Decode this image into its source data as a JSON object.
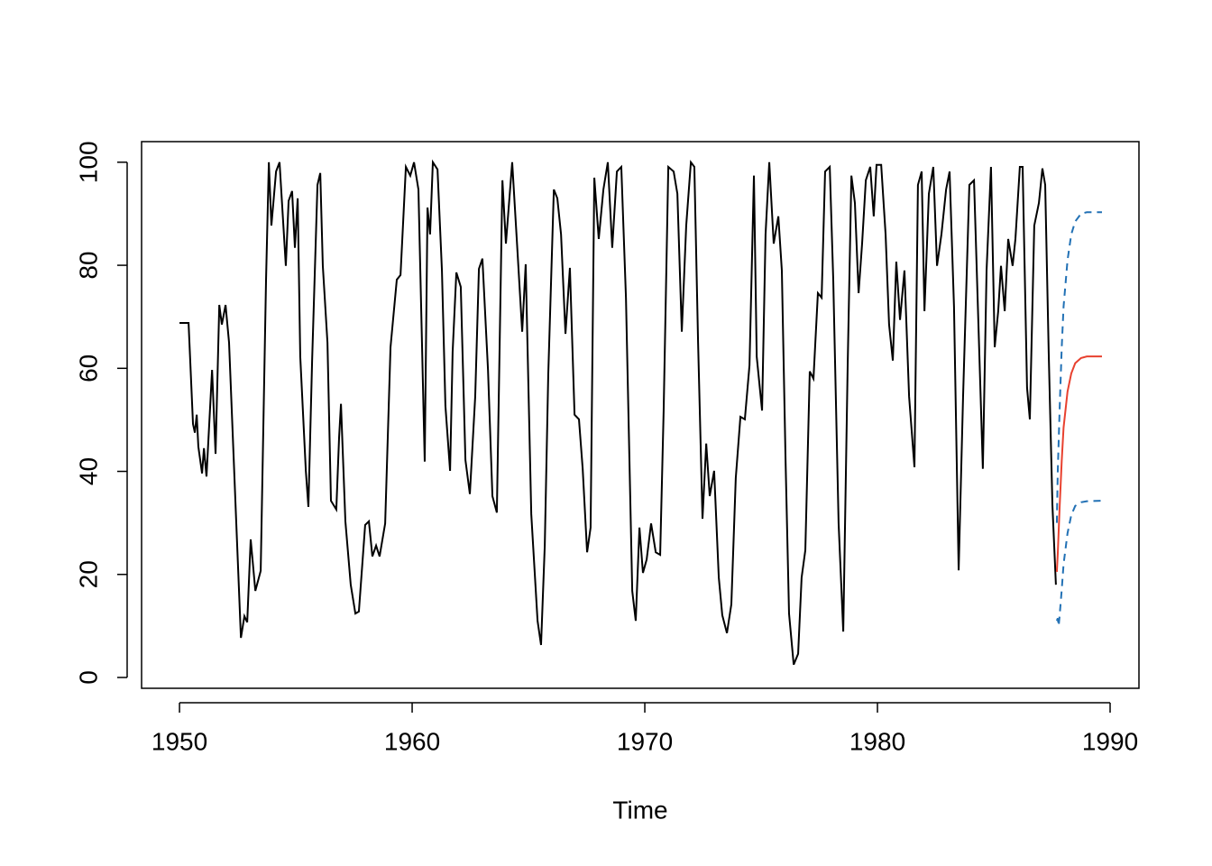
{
  "chart_data": {
    "type": "line",
    "xlabel": "Time",
    "xlim": [
      1948.37,
      1991.24
    ],
    "ylim": [
      -2.1,
      104.0
    ],
    "xticks": [
      1950,
      1960,
      1970,
      1980,
      1990
    ],
    "yticks": [
      0,
      20,
      40,
      60,
      80,
      100
    ],
    "series": [
      {
        "color": "#000000",
        "linestyle": "solid",
        "x": [
          1950.0,
          1950.39,
          1950.58,
          1950.66,
          1950.74,
          1950.81,
          1950.97,
          1951.05,
          1951.16,
          1951.4,
          1951.55,
          1951.71,
          1951.82,
          1951.98,
          1952.13,
          1952.44,
          1952.64,
          1952.79,
          1952.91,
          1953.06,
          1953.26,
          1953.49,
          1953.72,
          1953.84,
          1953.95,
          1954.15,
          1954.3,
          1954.57,
          1954.69,
          1954.84,
          1954.96,
          1955.08,
          1955.19,
          1955.43,
          1955.54,
          1955.7,
          1955.93,
          1956.05,
          1956.16,
          1956.36,
          1956.51,
          1956.74,
          1956.86,
          1956.94,
          1957.13,
          1957.36,
          1957.56,
          1957.71,
          1957.98,
          1958.14,
          1958.29,
          1958.45,
          1958.6,
          1958.84,
          1959.07,
          1959.34,
          1959.5,
          1959.73,
          1959.92,
          1960.08,
          1960.27,
          1960.54,
          1960.66,
          1960.77,
          1960.89,
          1961.09,
          1961.28,
          1961.43,
          1961.63,
          1961.74,
          1961.9,
          1962.09,
          1962.29,
          1962.48,
          1962.71,
          1962.87,
          1963.02,
          1963.26,
          1963.45,
          1963.64,
          1963.88,
          1964.03,
          1964.3,
          1964.53,
          1964.73,
          1964.88,
          1965.12,
          1965.39,
          1965.54,
          1965.7,
          1965.85,
          1966.09,
          1966.24,
          1966.4,
          1966.59,
          1966.78,
          1966.98,
          1967.17,
          1967.33,
          1967.52,
          1967.67,
          1967.83,
          1968.02,
          1968.22,
          1968.41,
          1968.6,
          1968.8,
          1968.99,
          1969.19,
          1969.46,
          1969.61,
          1969.77,
          1969.92,
          1970.08,
          1970.27,
          1970.47,
          1970.66,
          1970.81,
          1971.01,
          1971.24,
          1971.4,
          1971.59,
          1971.78,
          1971.98,
          1972.13,
          1972.29,
          1972.48,
          1972.64,
          1972.79,
          1972.98,
          1973.18,
          1973.33,
          1973.53,
          1973.72,
          1973.91,
          1974.11,
          1974.3,
          1974.5,
          1974.69,
          1974.81,
          1975.04,
          1975.19,
          1975.35,
          1975.54,
          1975.74,
          1975.89,
          1976.05,
          1976.2,
          1976.4,
          1976.59,
          1976.74,
          1976.9,
          1977.09,
          1977.25,
          1977.44,
          1977.6,
          1977.75,
          1977.95,
          1978.1,
          1978.33,
          1978.53,
          1978.72,
          1978.88,
          1979.03,
          1979.19,
          1979.34,
          1979.5,
          1979.69,
          1979.84,
          1979.96,
          1980.16,
          1980.35,
          1980.5,
          1980.66,
          1980.81,
          1980.97,
          1981.16,
          1981.36,
          1981.59,
          1981.74,
          1981.9,
          1982.02,
          1982.21,
          1982.4,
          1982.56,
          1982.75,
          1982.95,
          1983.1,
          1983.29,
          1983.49,
          1983.68,
          1983.95,
          1984.15,
          1984.34,
          1984.53,
          1984.69,
          1984.88,
          1985.04,
          1985.19,
          1985.31,
          1985.47,
          1985.62,
          1985.81,
          1985.93,
          1986.12,
          1986.24,
          1986.43,
          1986.55,
          1986.74,
          1986.94,
          1987.09,
          1987.21,
          1987.36,
          1987.52,
          1987.67
        ],
        "values": [
          68.8,
          68.8,
          49.2,
          47.5,
          51,
          44.8,
          39.6,
          44.5,
          39,
          59.7,
          43.4,
          72.3,
          68.5,
          72.3,
          65,
          30,
          7.7,
          11.9,
          10.7,
          26.8,
          16.8,
          20.7,
          77.2,
          100,
          87.7,
          98.2,
          100,
          79.9,
          92.5,
          94.4,
          83.4,
          93,
          62.3,
          40.1,
          33.1,
          61.5,
          95.6,
          97.9,
          79.9,
          65,
          34.3,
          32.6,
          46.6,
          53.1,
          30.3,
          18,
          12.4,
          12.8,
          29.6,
          30.3,
          23.5,
          25.6,
          23.5,
          29.9,
          64.1,
          77.2,
          78.1,
          99.1,
          97.4,
          100,
          94.7,
          41.9,
          91.2,
          86,
          100,
          98.6,
          79,
          52.7,
          40.1,
          63.2,
          78.6,
          75.8,
          42.2,
          35.6,
          54.5,
          79.3,
          81.3,
          59.7,
          35.2,
          32,
          96.5,
          84.2,
          100,
          82.5,
          67.1,
          80.2,
          31.7,
          11,
          6.3,
          25.6,
          58.8,
          94.7,
          93,
          86,
          66.7,
          79.5,
          51,
          50.1,
          40.5,
          24.3,
          29.1,
          97,
          85.1,
          94.7,
          100,
          83.4,
          98.2,
          99.1,
          73.7,
          16.8,
          11,
          29.1,
          20.3,
          22.9,
          29.9,
          24.3,
          23.8,
          51.8,
          99.1,
          98.2,
          93.9,
          67.1,
          87.7,
          100,
          99.1,
          65,
          30.8,
          45.4,
          35.2,
          40.1,
          19.4,
          12.1,
          8.6,
          14.2,
          38.7,
          50.6,
          50.1,
          60.6,
          97.4,
          62.3,
          51.8,
          86,
          100,
          84.2,
          89.5,
          79,
          42.2,
          12.4,
          2.5,
          4.6,
          19.4,
          24.7,
          59.4,
          58,
          74.6,
          73.7,
          98.2,
          99.1,
          77.2,
          29.9,
          8.9,
          60.6,
          97.4,
          92.1,
          74.6,
          84.2,
          96.5,
          99.1,
          89.5,
          99.5,
          99.5,
          86,
          68.5,
          61.5,
          80.7,
          69.4,
          79,
          54.5,
          40.8,
          95.6,
          98.2,
          71.1,
          93.9,
          99.1,
          79.9,
          86,
          94.7,
          98.2,
          72,
          20.8,
          54.5,
          95.6,
          96.5,
          68.5,
          40.5,
          79,
          99.1,
          64.1,
          71.1,
          79.9,
          71.1,
          85.1,
          79.9,
          85.1,
          99.1,
          99.1,
          56.2,
          50.1,
          87.7,
          92.1,
          98.8,
          95.6,
          63.2,
          33.5,
          18
        ]
      },
      {
        "color": "#e8412f",
        "linestyle": "solid",
        "x": [
          1987.71,
          1987.75,
          1987.83,
          1987.92,
          1988.0,
          1988.17,
          1988.33,
          1988.5,
          1988.75,
          1989.0,
          1989.65
        ],
        "values": [
          20.5,
          24,
          33,
          42,
          48.5,
          55.5,
          59,
          61,
          62,
          62.3,
          62.3
        ]
      },
      {
        "color": "#2271b5",
        "linestyle": "dashed",
        "x": [
          1987.71,
          1987.75,
          1987.83,
          1987.92,
          1988.0,
          1988.17,
          1988.33,
          1988.5,
          1988.75,
          1989.0,
          1989.65
        ],
        "values": [
          30,
          40,
          52,
          64,
          72,
          81,
          86,
          88.5,
          90,
          90.3,
          90.3
        ]
      },
      {
        "color": "#2271b5",
        "linestyle": "dashed",
        "x": [
          1987.71,
          1987.75,
          1987.79,
          1987.83,
          1987.92,
          1988.0,
          1988.17,
          1988.33,
          1988.5,
          1988.75,
          1989.0,
          1989.65
        ],
        "values": [
          11,
          11.5,
          10,
          12,
          17,
          22,
          28,
          31.5,
          33.3,
          34,
          34.2,
          34.3
        ]
      }
    ]
  }
}
